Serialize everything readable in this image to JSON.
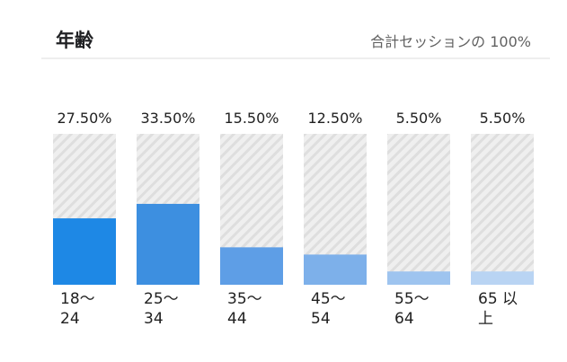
{
  "header": {
    "title": "年齢",
    "subtitle": "合計セッションの 100%"
  },
  "colors": {
    "track": "#e8e8e8",
    "track_stripe": "#dcdcdc",
    "bar_primary": "#1e88e5"
  },
  "chart_data": {
    "type": "bar",
    "categories": [
      "18～24",
      "25～34",
      "35～44",
      "45～54",
      "55～64",
      "65 以上"
    ],
    "category_lines": [
      [
        "18～",
        "24"
      ],
      [
        "25～",
        "34"
      ],
      [
        "35～",
        "44"
      ],
      [
        "45～",
        "54"
      ],
      [
        "55～",
        "64"
      ],
      [
        "65 以",
        "上"
      ]
    ],
    "values": [
      27.5,
      33.5,
      15.5,
      12.5,
      5.5,
      5.5
    ],
    "value_labels": [
      "27.50%",
      "33.50%",
      "15.50%",
      "12.50%",
      "5.50%",
      "5.50%"
    ],
    "bar_colors": [
      "#1e88e5",
      "#3d8fe0",
      "#5e9ee6",
      "#7db0ea",
      "#9ec4ef",
      "#b9d4f3"
    ],
    "ylim": [
      0,
      100
    ],
    "grid": false,
    "legend": "none"
  }
}
